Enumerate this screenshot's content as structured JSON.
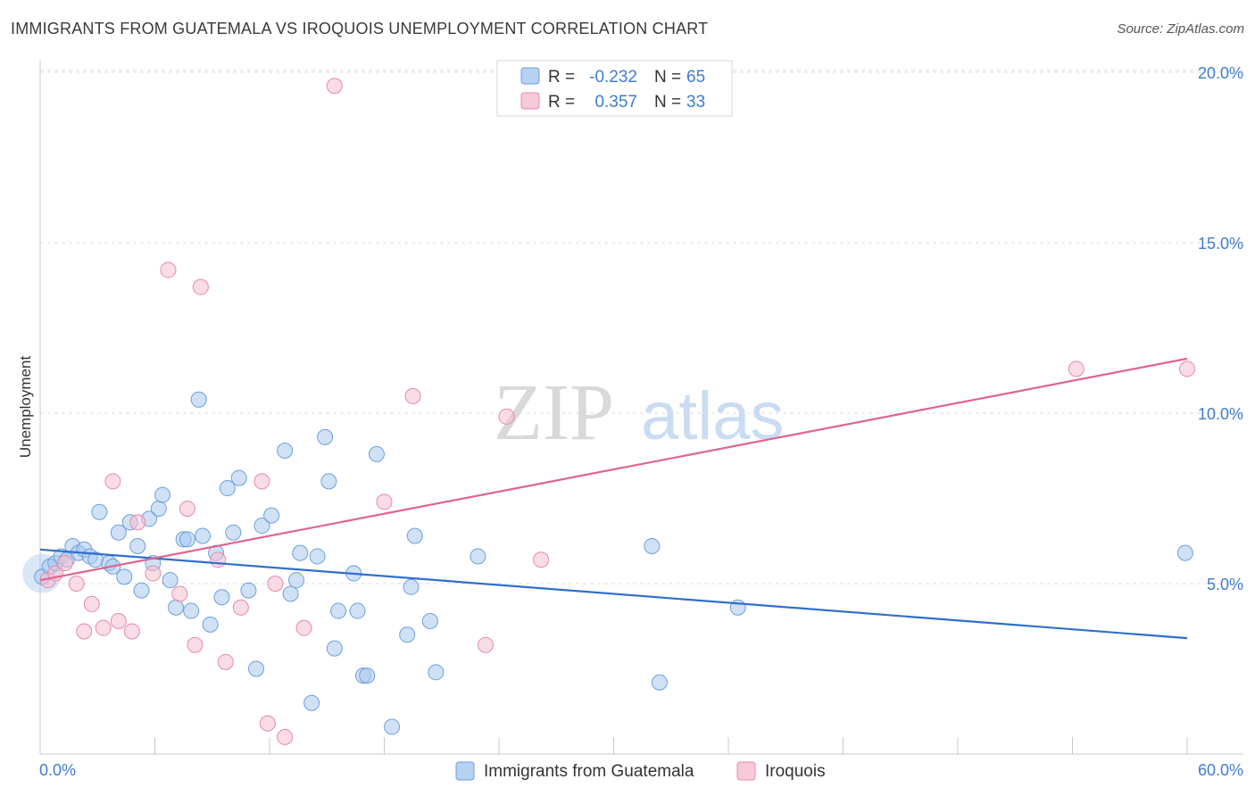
{
  "header": {
    "title": "IMMIGRANTS FROM GUATEMALA VS IROQUOIS UNEMPLOYMENT CORRELATION CHART",
    "source": "Source: ZipAtlas.com"
  },
  "watermark": {
    "zip": "ZIP",
    "atlas": "atlas"
  },
  "colors": {
    "blue_fill": "#a9c8ef",
    "blue_stroke": "#6c9fdc",
    "blue_line": "#2f6fcc",
    "pink_fill": "#f6bfd0",
    "pink_stroke": "#e88aa8",
    "pink_line": "#e0648f",
    "axis_text": "#3f7cd0",
    "grid": "#dddddd"
  },
  "chart_data": {
    "type": "scatter",
    "title": "IMMIGRANTS FROM GUATEMALA VS IROQUOIS UNEMPLOYMENT CORRELATION CHART",
    "xlabel": "",
    "ylabel": "Unemployment",
    "xlim": [
      0,
      60
    ],
    "ylim": [
      0,
      20
    ],
    "x_tick_labels": [
      "0.0%",
      "60.0%"
    ],
    "y_ticks": [
      5,
      10,
      15,
      20
    ],
    "y_tick_labels": [
      "5.0%",
      "10.0%",
      "15.0%",
      "20.0%"
    ],
    "legend_stats": [
      {
        "r_label": "R =",
        "r_value": "-0.232",
        "n_label": "N =",
        "n_value": "65"
      },
      {
        "r_label": "R =",
        "r_value": "0.357",
        "n_label": "N =",
        "n_value": "33"
      }
    ],
    "series": [
      {
        "name": "Immigrants from Guatemala",
        "color": "#a9c8ef",
        "trend": {
          "x0": 0,
          "y0": 6.0,
          "x1": 60,
          "y1": 3.4
        },
        "points": [
          [
            0.1,
            5.2
          ],
          [
            0.5,
            5.5
          ],
          [
            0.8,
            5.6
          ],
          [
            1.1,
            5.8
          ],
          [
            1.4,
            5.7
          ],
          [
            1.7,
            6.1
          ],
          [
            2.0,
            5.9
          ],
          [
            2.3,
            6.0
          ],
          [
            2.6,
            5.8
          ],
          [
            2.9,
            5.7
          ],
          [
            3.1,
            7.1
          ],
          [
            3.6,
            5.6
          ],
          [
            3.8,
            5.5
          ],
          [
            4.1,
            6.5
          ],
          [
            4.4,
            5.2
          ],
          [
            4.7,
            6.8
          ],
          [
            5.1,
            6.1
          ],
          [
            5.3,
            4.8
          ],
          [
            5.7,
            6.9
          ],
          [
            5.9,
            5.6
          ],
          [
            6.2,
            7.2
          ],
          [
            6.4,
            7.6
          ],
          [
            6.8,
            5.1
          ],
          [
            7.1,
            4.3
          ],
          [
            7.5,
            6.3
          ],
          [
            7.7,
            6.3
          ],
          [
            7.9,
            4.2
          ],
          [
            8.3,
            10.4
          ],
          [
            8.5,
            6.4
          ],
          [
            8.9,
            3.8
          ],
          [
            9.2,
            5.9
          ],
          [
            9.5,
            4.6
          ],
          [
            9.8,
            7.8
          ],
          [
            10.1,
            6.5
          ],
          [
            10.4,
            8.1
          ],
          [
            10.9,
            4.8
          ],
          [
            11.3,
            2.5
          ],
          [
            11.6,
            6.7
          ],
          [
            12.1,
            7.0
          ],
          [
            12.8,
            8.9
          ],
          [
            13.1,
            4.7
          ],
          [
            13.4,
            5.1
          ],
          [
            13.6,
            5.9
          ],
          [
            14.2,
            1.5
          ],
          [
            14.5,
            5.8
          ],
          [
            14.9,
            9.3
          ],
          [
            15.1,
            8.0
          ],
          [
            15.4,
            3.1
          ],
          [
            15.6,
            4.2
          ],
          [
            16.4,
            5.3
          ],
          [
            16.6,
            4.2
          ],
          [
            16.9,
            2.3
          ],
          [
            17.1,
            2.3
          ],
          [
            17.6,
            8.8
          ],
          [
            18.4,
            0.8
          ],
          [
            19.2,
            3.5
          ],
          [
            19.4,
            4.9
          ],
          [
            19.6,
            6.4
          ],
          [
            20.4,
            3.9
          ],
          [
            20.7,
            2.4
          ],
          [
            22.9,
            5.8
          ],
          [
            32.0,
            6.1
          ],
          [
            32.4,
            2.1
          ],
          [
            36.5,
            4.3
          ],
          [
            59.9,
            5.9
          ]
        ]
      },
      {
        "name": "Iroquois",
        "color": "#f6bfd0",
        "trend": {
          "x0": 0,
          "y0": 5.1,
          "x1": 60,
          "y1": 11.6
        },
        "points": [
          [
            0.4,
            5.1
          ],
          [
            0.8,
            5.3
          ],
          [
            1.3,
            5.6
          ],
          [
            1.9,
            5.0
          ],
          [
            2.3,
            3.6
          ],
          [
            2.7,
            4.4
          ],
          [
            3.3,
            3.7
          ],
          [
            3.8,
            8.0
          ],
          [
            4.1,
            3.9
          ],
          [
            4.8,
            3.6
          ],
          [
            5.1,
            6.8
          ],
          [
            5.9,
            5.3
          ],
          [
            6.7,
            14.2
          ],
          [
            7.3,
            4.7
          ],
          [
            7.7,
            7.2
          ],
          [
            8.1,
            3.2
          ],
          [
            8.4,
            13.7
          ],
          [
            9.3,
            5.7
          ],
          [
            9.7,
            2.7
          ],
          [
            10.5,
            4.3
          ],
          [
            11.6,
            8.0
          ],
          [
            11.9,
            0.9
          ],
          [
            12.3,
            5.0
          ],
          [
            12.8,
            0.5
          ],
          [
            13.8,
            3.7
          ],
          [
            15.4,
            19.6
          ],
          [
            18.0,
            7.4
          ],
          [
            19.5,
            10.5
          ],
          [
            23.3,
            3.2
          ],
          [
            24.4,
            9.9
          ],
          [
            26.2,
            5.7
          ],
          [
            54.2,
            11.3
          ],
          [
            60.0,
            11.3
          ]
        ]
      }
    ],
    "legend_position": "bottom-center"
  }
}
